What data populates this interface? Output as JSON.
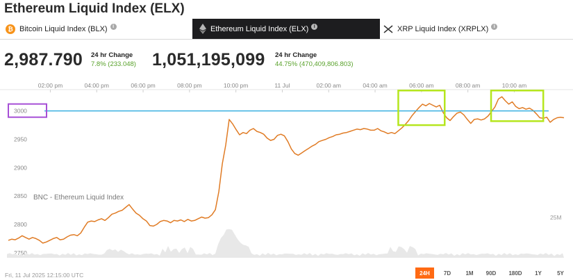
{
  "page": {
    "title": "Ethereum Liquid Index (ELX)"
  },
  "tabs": [
    {
      "label": "Bitcoin Liquid Index (BLX)",
      "icon": "bitcoin-icon",
      "active": false
    },
    {
      "label": "Ethereum Liquid Index (ELX)",
      "icon": "ethereum-icon",
      "active": true
    },
    {
      "label": "XRP Liquid Index (XRPLX)",
      "icon": "xrp-icon",
      "active": false
    }
  ],
  "stats": {
    "price": "2,987.790",
    "price_change_label": "24 hr Change",
    "price_change": "7.8% (233.048)",
    "volume": "1,051,195,099",
    "volume_change_label": "24 hr Change",
    "volume_change": "44.75% (470,409,806.803)"
  },
  "colors": {
    "price_line": "#e07b24",
    "reference_line": "#3ab0e0",
    "highlight_box": "#b5e61d",
    "label_box": "#a64fd6",
    "up": "#58a12a",
    "active_range": "#ff6a13"
  },
  "chart_data": {
    "type": "line",
    "title": "BNC - Ethereum Liquid Index",
    "x_tick_labels": [
      "02:00 pm",
      "04:00 pm",
      "06:00 pm",
      "08:00 pm",
      "10:00 pm",
      "11 Jul",
      "02:00 am",
      "04:00 am",
      "06:00 am",
      "08:00 am",
      "10:00 am"
    ],
    "y_tick_labels": [
      "3000",
      "2950",
      "2900",
      "2850",
      "2800",
      "2750"
    ],
    "ylim": [
      2740,
      3040
    ],
    "volume_label": "25M",
    "reference_line": 3000,
    "series": [
      {
        "values": [
          2772,
          2774,
          2773,
          2776,
          2780,
          2777,
          2774,
          2777,
          2775,
          2772,
          2767,
          2769,
          2772,
          2775,
          2777,
          2773,
          2774,
          2778,
          2781,
          2782,
          2780,
          2785,
          2795,
          2804,
          2806,
          2805,
          2808,
          2810,
          2807,
          2812,
          2818,
          2820,
          2823,
          2825,
          2830,
          2835,
          2827,
          2820,
          2816,
          2810,
          2806,
          2798,
          2797,
          2800,
          2805,
          2807,
          2806,
          2803,
          2807,
          2806,
          2808,
          2805,
          2809,
          2806,
          2807,
          2810,
          2813,
          2811,
          2812,
          2817,
          2826,
          2858,
          2907,
          2940,
          2985,
          2977,
          2967,
          2958,
          2962,
          2960,
          2966,
          2969,
          2964,
          2962,
          2959,
          2952,
          2948,
          2950,
          2957,
          2959,
          2956,
          2946,
          2933,
          2925,
          2922,
          2926,
          2930,
          2934,
          2938,
          2941,
          2946,
          2948,
          2950,
          2953,
          2955,
          2958,
          2959,
          2961,
          2962,
          2964,
          2966,
          2968,
          2967,
          2969,
          2968,
          2966,
          2966,
          2969,
          2965,
          2963,
          2960,
          2962,
          2960,
          2965,
          2970,
          2976,
          2983,
          2992,
          2999,
          3006,
          3012,
          3009,
          3013,
          3010,
          3007,
          3010,
          2997,
          2988,
          2983,
          2990,
          2996,
          2998,
          2993,
          2985,
          2978,
          2985,
          2986,
          2984,
          2986,
          2991,
          2999,
          3007,
          3021,
          3025,
          3018,
          3012,
          3016,
          3008,
          3004,
          3006,
          3003,
          3005,
          3001,
          2995,
          2988,
          2987,
          2989,
          2980,
          2985,
          2988,
          2989,
          2988
        ]
      }
    ],
    "highlights": [
      {
        "x_range": [
          "05:00 am",
          "07:00 am"
        ],
        "y_range": [
          2975,
          3036
        ]
      },
      {
        "x_range": [
          "09:00 am",
          "11:15 am"
        ],
        "y_range": [
          2982,
          3036
        ]
      }
    ]
  },
  "footer": {
    "timestamp": "Fri, 11 Jul 2025 12:15:00 UTC"
  },
  "ranges": [
    {
      "label": "24H",
      "active": true
    },
    {
      "label": "7D",
      "active": false
    },
    {
      "label": "1M",
      "active": false
    },
    {
      "label": "90D",
      "active": false
    },
    {
      "label": "180D",
      "active": false
    },
    {
      "label": "1Y",
      "active": false
    },
    {
      "label": "5Y",
      "active": false
    }
  ]
}
